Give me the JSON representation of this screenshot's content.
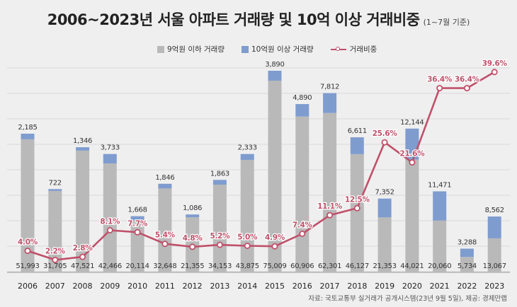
{
  "header": {
    "title": "2006~2023년 서울 아파트 거래량 및 10억 이상 거래비중",
    "subtitle": "(1~7월 기준)"
  },
  "legend": {
    "below": "9억원 이하 거래량",
    "above": "10억원 이상 거래량",
    "ratio": "거래비중"
  },
  "source": "자료: 국토교통부 실거래가 공개시스템(23년 9월 5일), 제공: 경제만랩",
  "colors": {
    "below": "#b9b9b9",
    "above": "#7f9ccf",
    "ratio": "#c0506a",
    "ratio_label": "#c0506a",
    "background": "#efefef"
  },
  "chart_data": {
    "type": "bar",
    "stacked": true,
    "categories": [
      "2006",
      "2007",
      "2008",
      "2009",
      "2010",
      "2011",
      "2012",
      "2013",
      "2014",
      "2015",
      "2016",
      "2017",
      "2018",
      "2019",
      "2020",
      "2021",
      "2022",
      "2023"
    ],
    "series": [
      {
        "name": "9억원 이하 거래량",
        "type": "bar",
        "values": [
          51993,
          31705,
          47521,
          42466,
          20114,
          32648,
          21355,
          34153,
          43875,
          75009,
          60906,
          62301,
          46127,
          21353,
          44021,
          20060,
          5734,
          13067
        ],
        "labels": [
          "51,993",
          "31,705",
          "47,521",
          "42,466",
          "20,114",
          "32,648",
          "21,355",
          "34,153",
          "43,875",
          "75,009",
          "60,906",
          "62,301",
          "46,127",
          "21,353",
          "44,021",
          "20,060",
          "5,734",
          "13,067"
        ]
      },
      {
        "name": "10억원 이상 거래량",
        "type": "bar",
        "values": [
          2185,
          722,
          1346,
          3733,
          1668,
          1846,
          1086,
          1863,
          2333,
          3890,
          4890,
          7812,
          6611,
          7352,
          12144,
          11471,
          3288,
          8562
        ],
        "labels": [
          "2,185",
          "722",
          "1,346",
          "3,733",
          "1,668",
          "1,846",
          "1,086",
          "1,863",
          "2,333",
          "3,890",
          "4,890",
          "7,812",
          "6,611",
          "7,352",
          "12,144",
          "11,471",
          "3,288",
          "8,562"
        ]
      },
      {
        "name": "거래비중",
        "type": "line",
        "values": [
          4.0,
          2.2,
          2.8,
          8.1,
          7.7,
          5.4,
          4.8,
          5.2,
          5.0,
          4.9,
          7.4,
          11.1,
          12.5,
          25.6,
          21.6,
          36.4,
          36.4,
          39.6
        ],
        "labels": [
          "4.0%",
          "2.2%",
          "2.8%",
          "8.1%",
          "7.7%",
          "5.4%",
          "4.8%",
          "5.2%",
          "5.0%",
          "4.9%",
          "7.4%",
          "11.1%",
          "12.5%",
          "25.6%",
          "21.6%",
          "36.4%",
          "36.4%",
          "39.6%"
        ]
      }
    ],
    "title": "2006~2023년 서울 아파트 거래량 및 10억 이상 거래비중",
    "grid": true,
    "legend_position": "top"
  }
}
